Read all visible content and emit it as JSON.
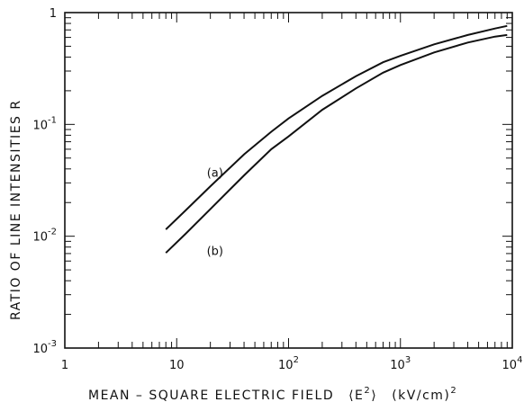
{
  "chart_data": {
    "type": "line",
    "x_scale": "log",
    "y_scale": "log",
    "xlim": [
      1,
      10000
    ],
    "ylim": [
      0.001,
      1
    ],
    "xlabel": "MEAN – SQUARE ELECTRIC FIELD",
    "xlabel_symbol": "⟨E²⟩",
    "xlabel_unit": "(kV/cm)²",
    "ylabel": "RATIO OF LINE INTENSITIES R",
    "x_ticks": [
      {
        "value": 1,
        "base": "1",
        "exp": ""
      },
      {
        "value": 10,
        "base": "10",
        "exp": ""
      },
      {
        "value": 100,
        "base": "10",
        "exp": "2"
      },
      {
        "value": 1000,
        "base": "10",
        "exp": "3"
      },
      {
        "value": 10000,
        "base": "10",
        "exp": "4"
      }
    ],
    "y_ticks": [
      {
        "value": 1,
        "base": "1",
        "exp": ""
      },
      {
        "value": 0.1,
        "base": "10",
        "exp": "-1"
      },
      {
        "value": 0.01,
        "base": "10",
        "exp": "-2"
      },
      {
        "value": 0.001,
        "base": "10",
        "exp": "-3"
      }
    ],
    "grid": false,
    "series": [
      {
        "name": "(a)",
        "x": [
          8,
          12,
          20,
          40,
          70,
          100,
          200,
          400,
          700,
          1000,
          2000,
          4000,
          7000,
          9000
        ],
        "y": [
          0.0115,
          0.017,
          0.028,
          0.054,
          0.086,
          0.113,
          0.18,
          0.27,
          0.36,
          0.41,
          0.52,
          0.63,
          0.72,
          0.76
        ]
      },
      {
        "name": "(b)",
        "x": [
          8,
          12,
          20,
          40,
          70,
          100,
          200,
          400,
          700,
          1000,
          2000,
          4000,
          7000,
          9000
        ],
        "y": [
          0.0071,
          0.0105,
          0.0175,
          0.035,
          0.06,
          0.078,
          0.135,
          0.21,
          0.29,
          0.34,
          0.44,
          0.54,
          0.61,
          0.63
        ]
      }
    ],
    "annotations": [
      {
        "text": "(a)",
        "series": "(a)"
      },
      {
        "text": "(b)",
        "series": "(b)"
      }
    ]
  }
}
